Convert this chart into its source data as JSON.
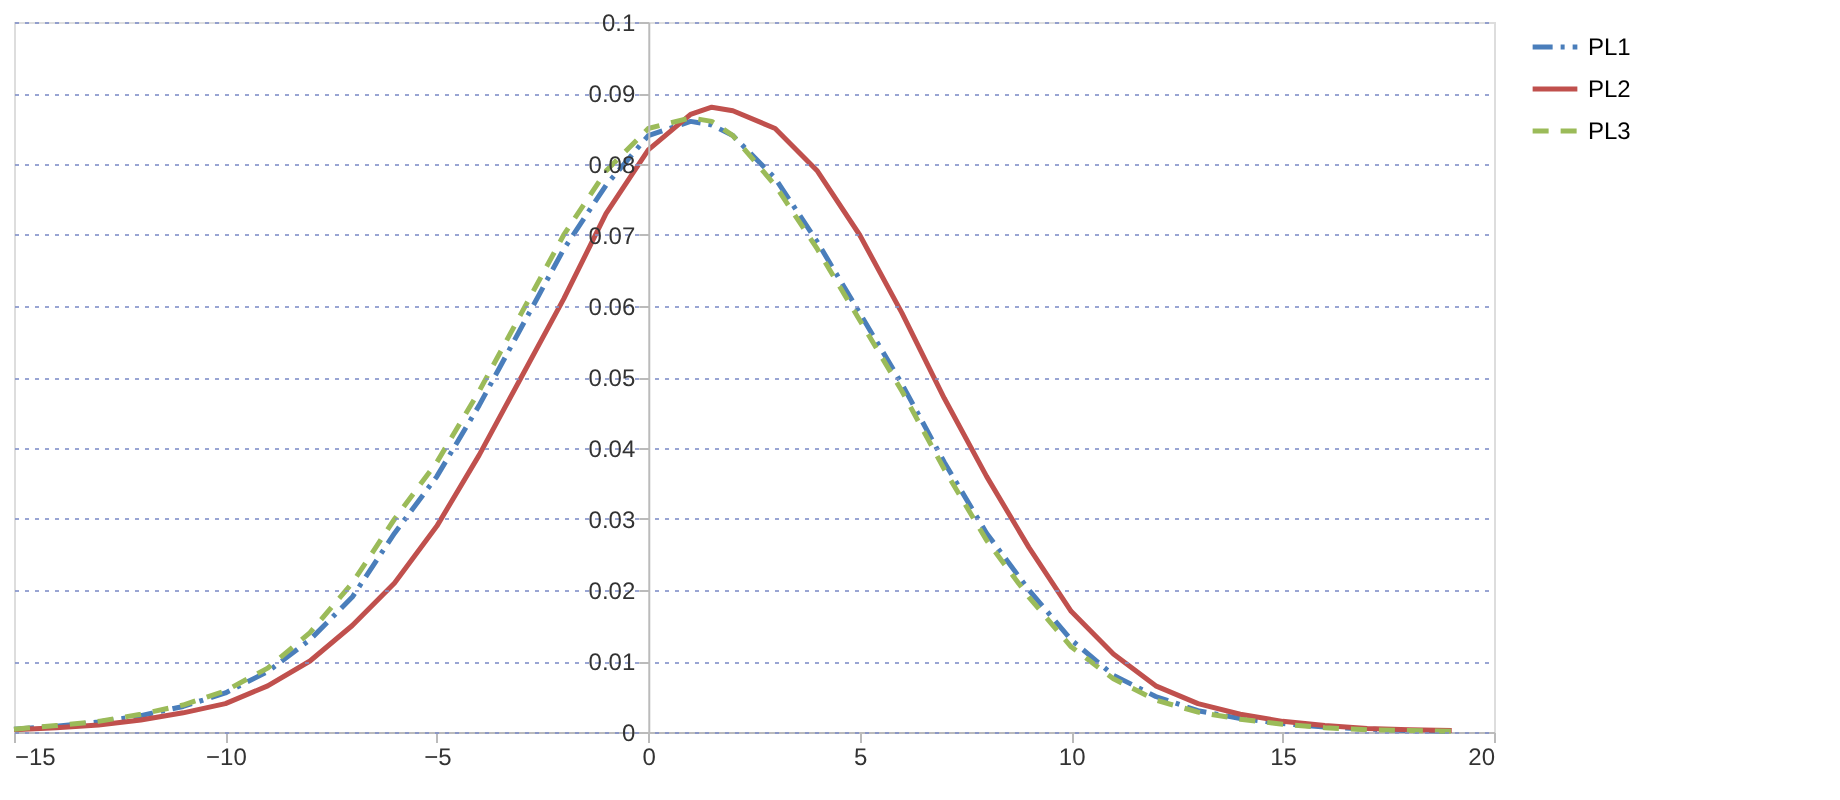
{
  "chart_data": {
    "type": "line",
    "x": [
      -15,
      -14,
      -13,
      -12,
      -11,
      -10,
      -9,
      -8,
      -7,
      -6,
      -5,
      -4,
      -3,
      -2,
      -1,
      0,
      1,
      1.5,
      2,
      3,
      4,
      5,
      6,
      7,
      8,
      9,
      10,
      11,
      12,
      13,
      14,
      15,
      16,
      17,
      18,
      19
    ],
    "series": [
      {
        "name": "PL1",
        "color": "#4a7ebb",
        "line_style": "dashed",
        "values": [
          0.0004,
          0.0008,
          0.0014,
          0.0023,
          0.0036,
          0.0055,
          0.0085,
          0.013,
          0.019,
          0.028,
          0.036,
          0.046,
          0.057,
          0.068,
          0.077,
          0.084,
          0.086,
          0.0855,
          0.084,
          0.078,
          0.069,
          0.059,
          0.049,
          0.038,
          0.028,
          0.02,
          0.013,
          0.008,
          0.005,
          0.003,
          0.0019,
          0.0012,
          0.0007,
          0.0004,
          0.0002,
          0.0001
        ]
      },
      {
        "name": "PL2",
        "color": "#c0504d",
        "line_style": "solid",
        "values": [
          0.0003,
          0.0006,
          0.001,
          0.0017,
          0.0027,
          0.004,
          0.0065,
          0.01,
          0.015,
          0.021,
          0.029,
          0.039,
          0.05,
          0.061,
          0.073,
          0.082,
          0.087,
          0.088,
          0.0875,
          0.085,
          0.079,
          0.07,
          0.059,
          0.047,
          0.036,
          0.026,
          0.017,
          0.011,
          0.0065,
          0.004,
          0.0025,
          0.0015,
          0.0009,
          0.0005,
          0.0003,
          0.0002
        ]
      },
      {
        "name": "PL3",
        "color": "#9bbb59",
        "line_style": "dashed",
        "values": [
          0.0004,
          0.0009,
          0.0015,
          0.0025,
          0.0038,
          0.0058,
          0.009,
          0.014,
          0.021,
          0.03,
          0.038,
          0.048,
          0.059,
          0.07,
          0.079,
          0.085,
          0.0865,
          0.086,
          0.084,
          0.077,
          0.068,
          0.058,
          0.048,
          0.037,
          0.027,
          0.019,
          0.012,
          0.0075,
          0.0045,
          0.0028,
          0.0018,
          0.0011,
          0.0006,
          0.0003,
          0.0002,
          0.0001
        ]
      }
    ],
    "xlim": [
      -15,
      20
    ],
    "xticks": [
      -15,
      -10,
      -5,
      0,
      5,
      10,
      15,
      20
    ],
    "ylim": [
      0,
      0.1
    ],
    "yticks": [
      0,
      0.01,
      0.02,
      0.03,
      0.04,
      0.05,
      0.06,
      0.07,
      0.08,
      0.09,
      0.1
    ],
    "grid": "y",
    "legend": "right",
    "marker": "none"
  }
}
